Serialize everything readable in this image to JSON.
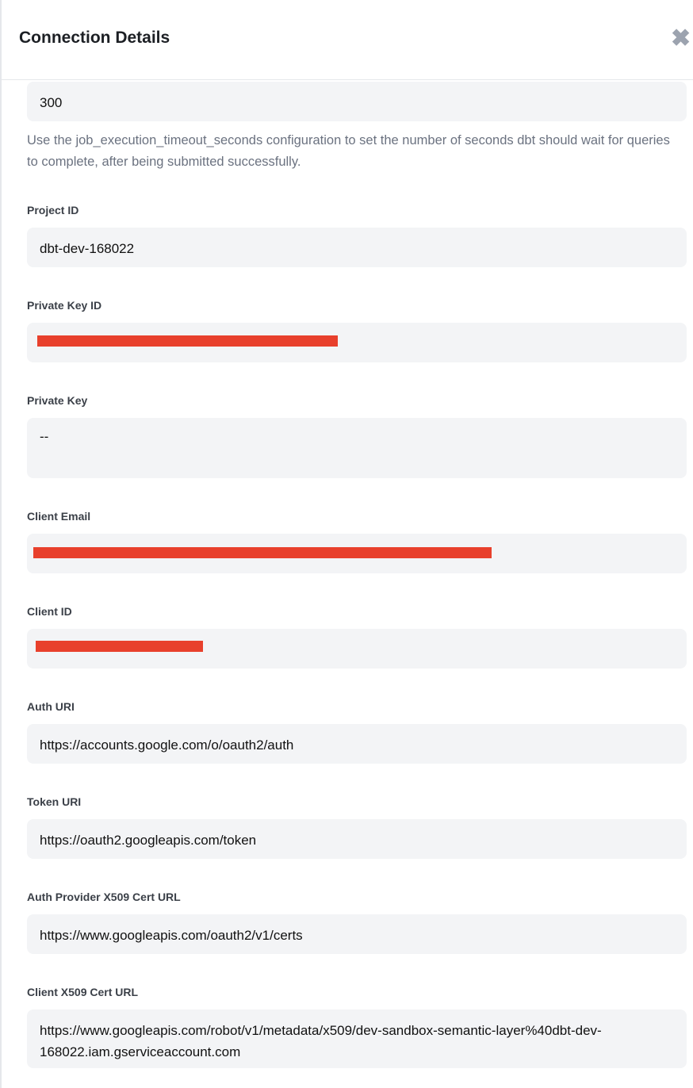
{
  "header": {
    "title": "Connection Details"
  },
  "fields": [
    {
      "value": "300",
      "help": "Use the job_execution_timeout_seconds configuration to set the number of seconds dbt should wait for queries to complete, after being submitted successfully."
    },
    {
      "label": "Project ID",
      "value": "dbt-dev-168022"
    },
    {
      "label": "Private Key ID"
    },
    {
      "label": "Private Key",
      "value": "--"
    },
    {
      "label": "Client Email"
    },
    {
      "label": "Client ID"
    },
    {
      "label": "Auth URI",
      "value": "https://accounts.google.com/o/oauth2/auth"
    },
    {
      "label": "Token URI",
      "value": "https://oauth2.googleapis.com/token"
    },
    {
      "label": "Auth Provider X509 Cert URL",
      "value": "https://www.googleapis.com/oauth2/v1/certs"
    },
    {
      "label": "Client X509 Cert URL",
      "value": "https://www.googleapis.com/robot/v1/metadata/x509/dev-sandbox-semantic-layer%40dbt-dev-168022.iam.gserviceaccount.com"
    }
  ]
}
